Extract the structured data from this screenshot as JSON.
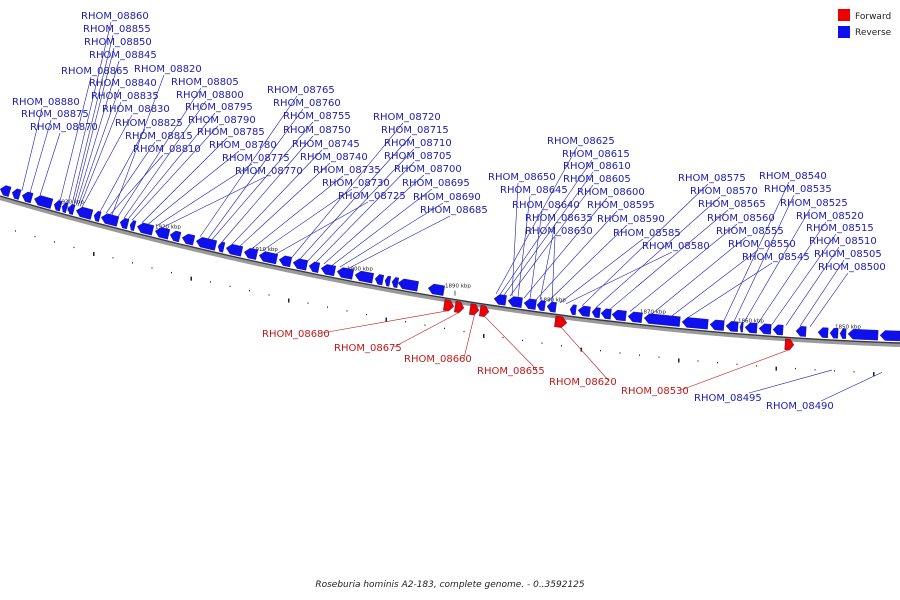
{
  "legend": {
    "forward": {
      "label": "Forward",
      "color": "#ee0000"
    },
    "reverse": {
      "label": "Reverse",
      "color": "#1010ee"
    }
  },
  "caption": "Roseburia hominis A2-183, complete genome. - 0..3592125",
  "backbone_ticks": [
    "1930 kbp",
    "1920 kbp",
    "1910 kbp",
    "1900 kbp",
    "1890 kbp",
    "1880 kbp",
    "1870 kbp",
    "1860 kbp",
    "1850 kbp"
  ],
  "forward_genes": [
    "RHOM_08680",
    "RHOM_08675",
    "RHOM_08660",
    "RHOM_08655",
    "RHOM_08620",
    "RHOM_08530"
  ],
  "reverse_genes": [
    "RHOM_08860",
    "RHOM_08855",
    "RHOM_08850",
    "RHOM_08845",
    "RHOM_08865",
    "RHOM_08840",
    "RHOM_08835",
    "RHOM_08830",
    "RHOM_08880",
    "RHOM_08875",
    "RHOM_08870",
    "RHOM_08820",
    "RHOM_08805",
    "RHOM_08800",
    "RHOM_08795",
    "RHOM_08790",
    "RHOM_08825",
    "RHOM_08815",
    "RHOM_08810",
    "RHOM_08785",
    "RHOM_08780",
    "RHOM_08775",
    "RHOM_08770",
    "RHOM_08765",
    "RHOM_08760",
    "RHOM_08755",
    "RHOM_08750",
    "RHOM_08745",
    "RHOM_08740",
    "RHOM_08735",
    "RHOM_08730",
    "RHOM_08725",
    "RHOM_08720",
    "RHOM_08715",
    "RHOM_08710",
    "RHOM_08705",
    "RHOM_08700",
    "RHOM_08695",
    "RHOM_08690",
    "RHOM_08685",
    "RHOM_08625",
    "RHOM_08615",
    "RHOM_08610",
    "RHOM_08605",
    "RHOM_08650",
    "RHOM_08645",
    "RHOM_08600",
    "RHOM_08640",
    "RHOM_08595",
    "RHOM_08635",
    "RHOM_08590",
    "RHOM_08630",
    "RHOM_08585",
    "RHOM_08580",
    "RHOM_08575",
    "RHOM_08570",
    "RHOM_08565",
    "RHOM_08560",
    "RHOM_08555",
    "RHOM_08550",
    "RHOM_08545",
    "RHOM_08540",
    "RHOM_08535",
    "RHOM_08525",
    "RHOM_08520",
    "RHOM_08515",
    "RHOM_08510",
    "RHOM_08505",
    "RHOM_08500",
    "RHOM_08495",
    "RHOM_08490"
  ]
}
